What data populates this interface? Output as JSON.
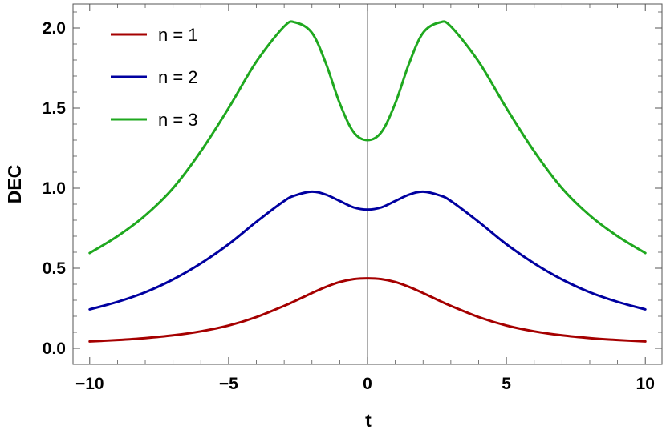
{
  "chart_data": {
    "type": "line",
    "title": "",
    "xlabel": "t",
    "ylabel": "DEC",
    "xlim": [
      -10.6,
      10.6
    ],
    "ylim": [
      -0.1,
      2.15
    ],
    "x_ticks": [
      -10,
      -5,
      0,
      5,
      10
    ],
    "x_tick_labels": [
      "−10",
      "−5",
      "0",
      "5",
      "10"
    ],
    "y_ticks": [
      0.0,
      0.5,
      1.0,
      1.5,
      2.0
    ],
    "y_tick_labels": [
      "0.0",
      "0.5",
      "1.0",
      "1.5",
      "2.0"
    ],
    "grid": false,
    "frame": true,
    "vertical_reference_line_at_x": 0,
    "legend_position": "top-left",
    "x": [
      -10,
      -9,
      -8,
      -7,
      -6,
      -5,
      -4,
      -3,
      -2.6,
      -2,
      -1.5,
      -1,
      -0.5,
      0,
      0.5,
      1,
      1.5,
      2,
      2.6,
      3,
      4,
      5,
      6,
      7,
      8,
      9,
      10
    ],
    "series": [
      {
        "name": "n = 1",
        "color": "#a50000",
        "values": [
          0.043,
          0.052,
          0.064,
          0.081,
          0.106,
          0.142,
          0.195,
          0.265,
          0.296,
          0.345,
          0.383,
          0.414,
          0.432,
          0.437,
          0.432,
          0.414,
          0.383,
          0.345,
          0.296,
          0.265,
          0.195,
          0.142,
          0.106,
          0.081,
          0.064,
          0.052,
          0.043
        ]
      },
      {
        "name": "n = 2",
        "color": "#0000a0",
        "values": [
          0.243,
          0.29,
          0.35,
          0.43,
          0.53,
          0.65,
          0.79,
          0.92,
          0.955,
          0.978,
          0.96,
          0.92,
          0.88,
          0.866,
          0.88,
          0.92,
          0.96,
          0.978,
          0.955,
          0.92,
          0.79,
          0.65,
          0.53,
          0.43,
          0.35,
          0.29,
          0.243
        ]
      },
      {
        "name": "n = 3",
        "color": "#1fa81f",
        "values": [
          0.595,
          0.7,
          0.83,
          1.0,
          1.23,
          1.5,
          1.79,
          2.01,
          2.035,
          1.97,
          1.78,
          1.53,
          1.35,
          1.3,
          1.35,
          1.53,
          1.78,
          1.97,
          2.035,
          2.01,
          1.79,
          1.5,
          1.23,
          1.0,
          0.83,
          0.7,
          0.595
        ]
      }
    ]
  }
}
